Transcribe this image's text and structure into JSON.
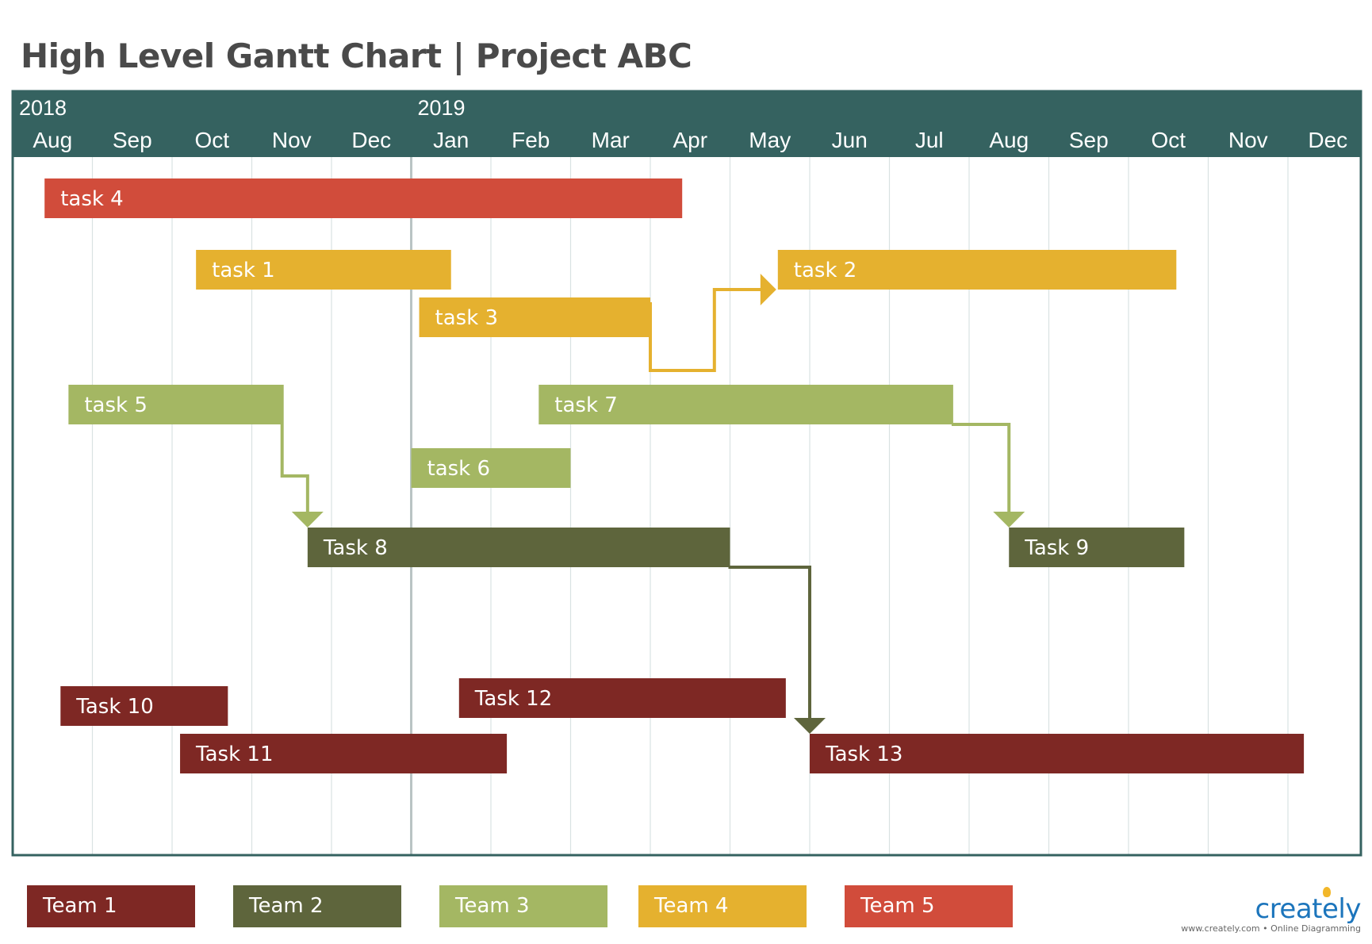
{
  "title": "High Level Gantt Chart | Project ABC",
  "timeline": {
    "years": [
      {
        "label": "2018",
        "month_index": 0
      },
      {
        "label": "2019",
        "month_index": 5
      }
    ],
    "months": [
      "Aug",
      "Sep",
      "Oct",
      "Nov",
      "Dec",
      "Jan",
      "Feb",
      "Mar",
      "Apr",
      "May",
      "Jun",
      "Jul",
      "Aug",
      "Sep",
      "Oct",
      "Nov",
      "Dec"
    ],
    "header_color": "#356260",
    "year_divider_month_index": 5
  },
  "teams": [
    {
      "id": "team1",
      "label": "Team 1",
      "color": "#7e2824"
    },
    {
      "id": "team2",
      "label": "Team 2",
      "color": "#5e653c"
    },
    {
      "id": "team3",
      "label": "Team 3",
      "color": "#a4b763"
    },
    {
      "id": "team4",
      "label": "Team 4",
      "color": "#e5b12f"
    },
    {
      "id": "team5",
      "label": "Team 5",
      "color": "#d14c3b"
    }
  ],
  "tasks": [
    {
      "id": "task4",
      "label": "task 4",
      "team": "team5",
      "start": 0.4,
      "end": 8.4
    },
    {
      "id": "task1",
      "label": "task 1",
      "team": "team4",
      "start": 2.3,
      "end": 5.5
    },
    {
      "id": "task2",
      "label": "task 2",
      "team": "team4",
      "start": 9.6,
      "end": 14.6
    },
    {
      "id": "task3",
      "label": "task 3",
      "team": "team4",
      "start": 5.1,
      "end": 8.0
    },
    {
      "id": "task5",
      "label": "task 5",
      "team": "team3",
      "start": 0.7,
      "end": 3.4
    },
    {
      "id": "task7",
      "label": "task 7",
      "team": "team3",
      "start": 6.6,
      "end": 11.8
    },
    {
      "id": "task6",
      "label": "task 6",
      "team": "team3",
      "start": 5.0,
      "end": 7.0
    },
    {
      "id": "task8",
      "label": "Task 8",
      "team": "team2",
      "start": 3.7,
      "end": 9.0
    },
    {
      "id": "task9",
      "label": "Task 9",
      "team": "team2",
      "start": 12.5,
      "end": 14.7
    },
    {
      "id": "task10",
      "label": "Task 10",
      "team": "team1",
      "start": 0.6,
      "end": 2.7
    },
    {
      "id": "task12",
      "label": "Task 12",
      "team": "team1",
      "start": 5.6,
      "end": 9.7
    },
    {
      "id": "task11",
      "label": "Task 11",
      "team": "team1",
      "start": 2.1,
      "end": 6.2
    },
    {
      "id": "task13",
      "label": "Task 13",
      "team": "team1",
      "start": 10.0,
      "end": 16.2
    }
  ],
  "dependencies": [
    {
      "from": "task3",
      "to": "task2"
    },
    {
      "from": "task5",
      "to": "task8"
    },
    {
      "from": "task7",
      "to": "task9"
    },
    {
      "from": "task8",
      "to": "task13"
    }
  ],
  "brand": {
    "name": "creately",
    "tagline": "www.creately.com • Online Diagramming"
  }
}
